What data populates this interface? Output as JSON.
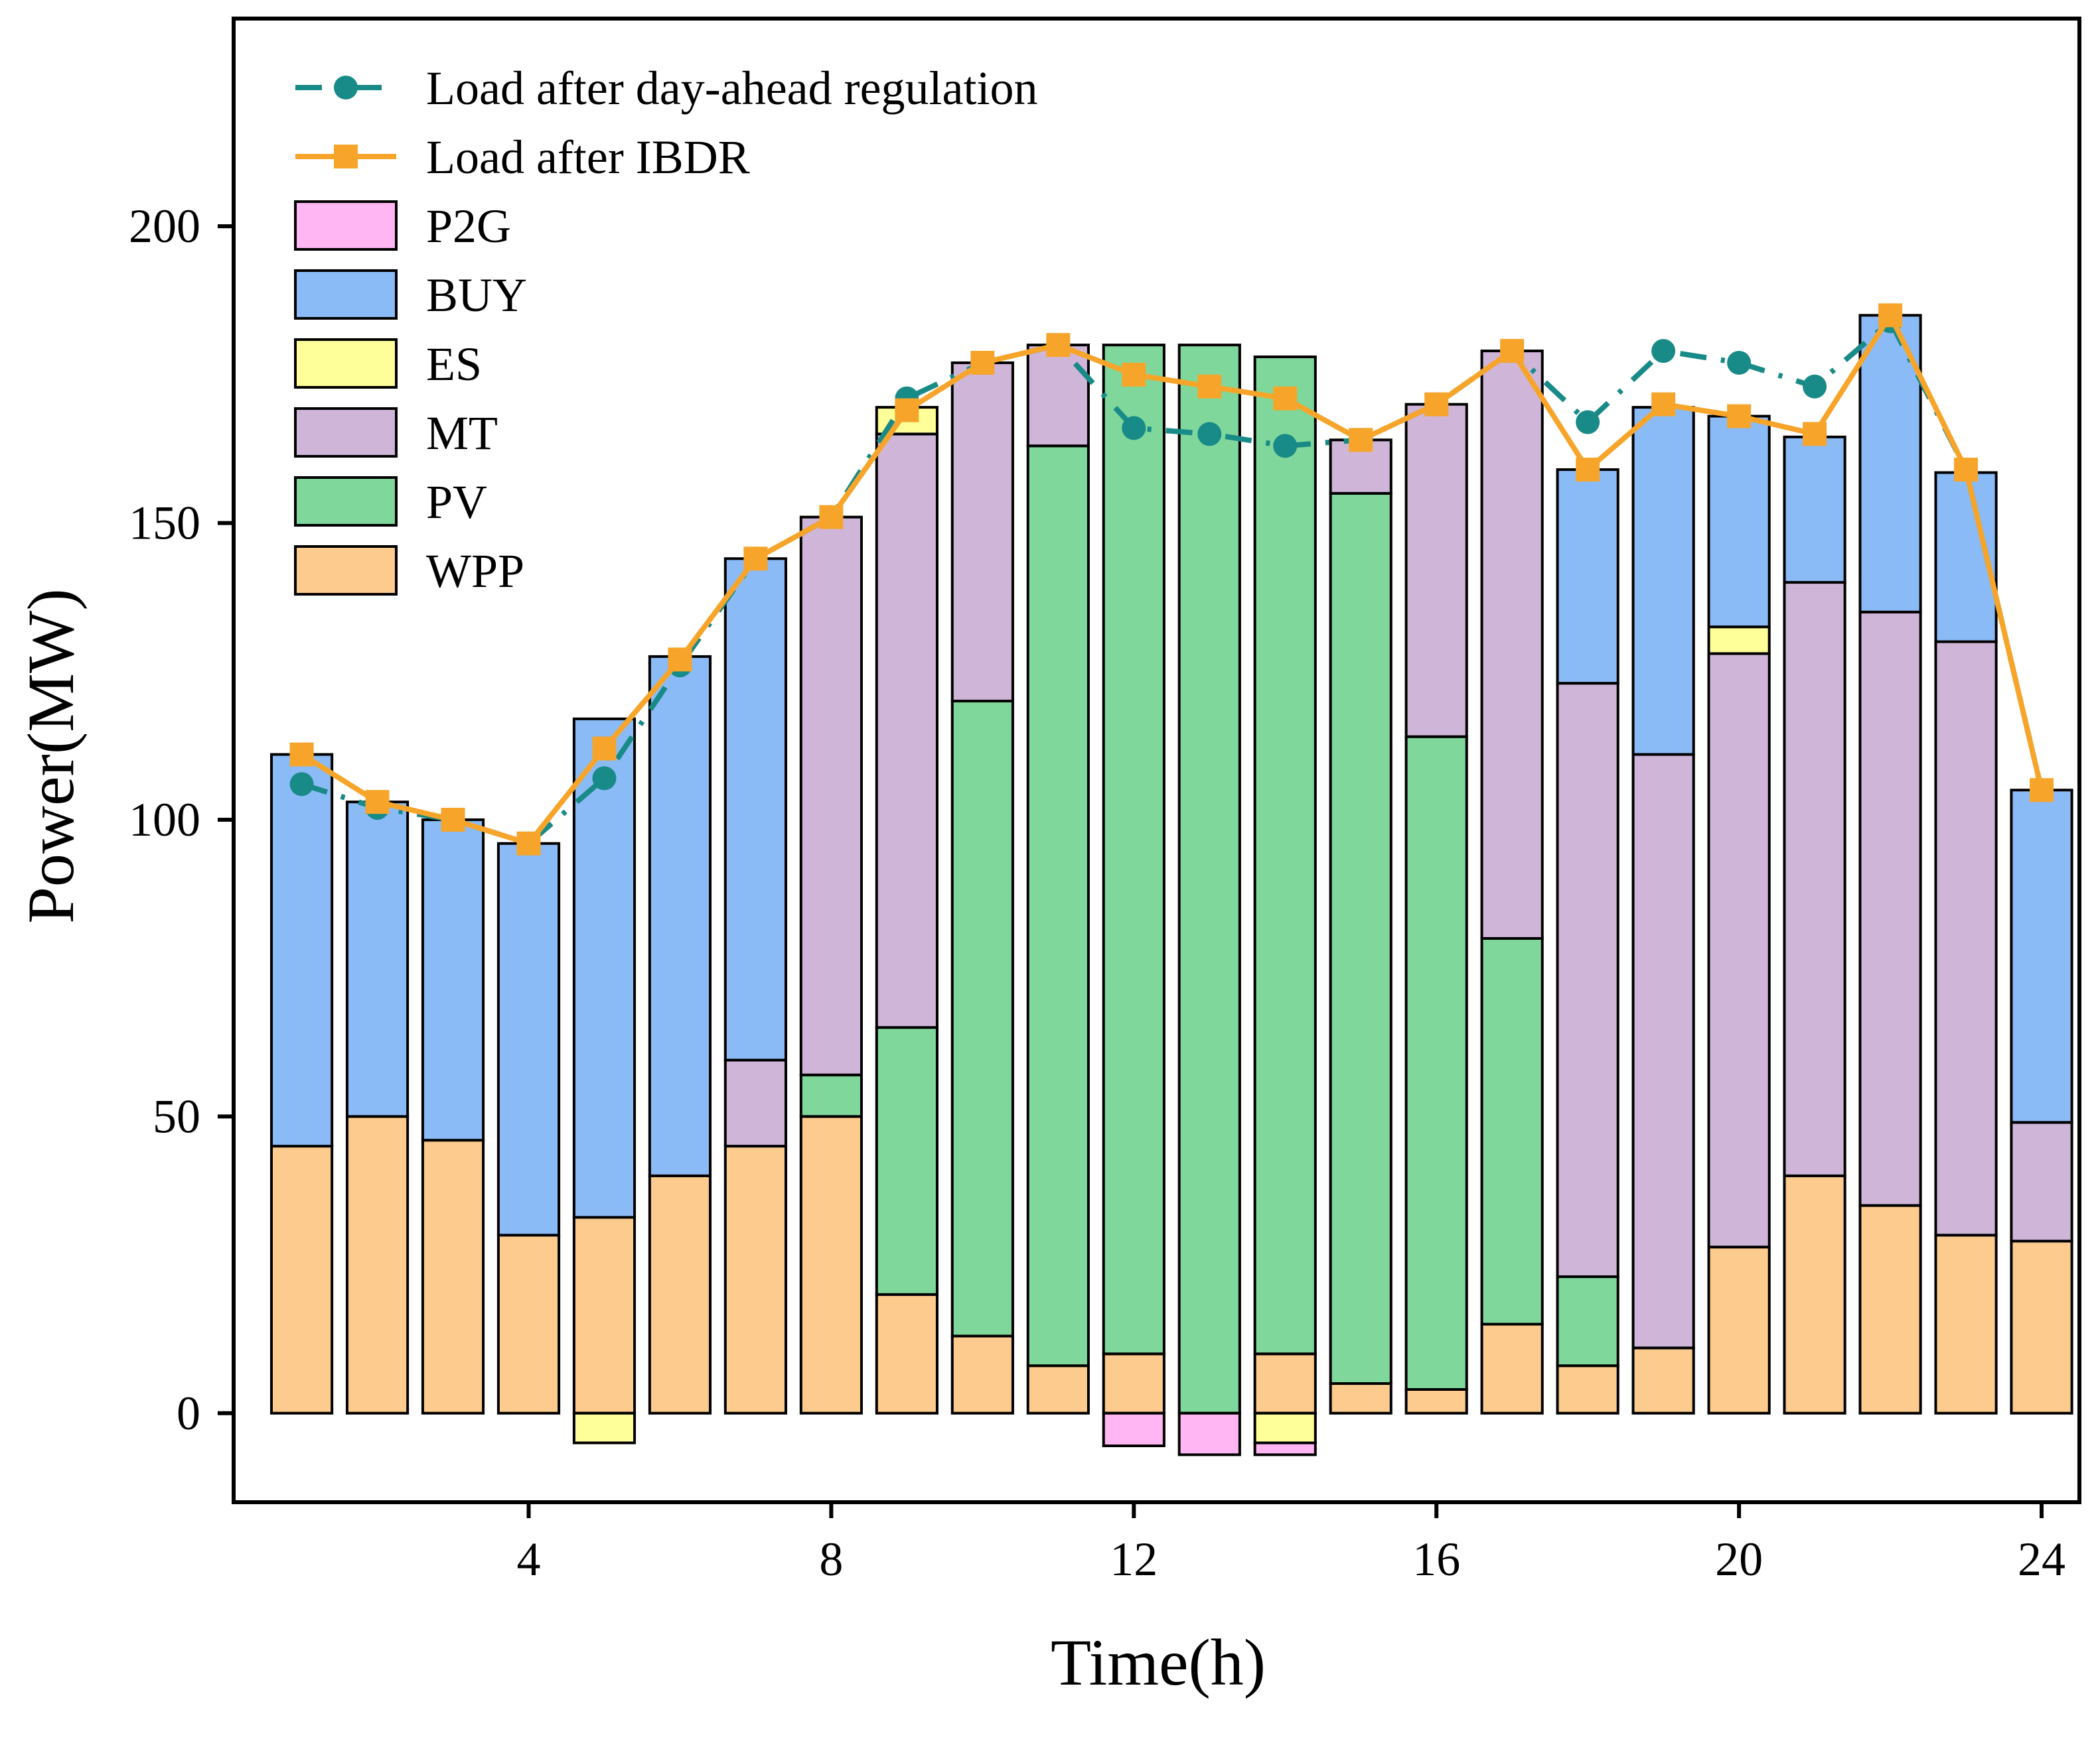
{
  "chart_data": {
    "type": "bar",
    "stacked": true,
    "title": "",
    "xlabel": "Time(h)",
    "ylabel": "Power(MW)",
    "xlim": [
      0.1,
      24.5
    ],
    "ylim": [
      -15,
      235
    ],
    "xticks": [
      4,
      8,
      12,
      16,
      20,
      24
    ],
    "yticks": [
      0,
      50,
      100,
      150,
      200
    ],
    "x": [
      1,
      2,
      3,
      4,
      5,
      6,
      7,
      8,
      9,
      10,
      11,
      12,
      13,
      14,
      15,
      16,
      17,
      18,
      19,
      20,
      21,
      22,
      23,
      24
    ],
    "series": [
      {
        "name": "WPP",
        "color": "#FDCB8D",
        "values": [
          45,
          50,
          46,
          30,
          33,
          40,
          45,
          50,
          20,
          13,
          8,
          10,
          0,
          10,
          5,
          4,
          15,
          8,
          11,
          28,
          40,
          35,
          30,
          29
        ]
      },
      {
        "name": "PV",
        "color": "#7FD79B",
        "values": [
          0,
          0,
          0,
          0,
          0,
          0,
          0,
          7,
          45,
          107,
          155,
          170,
          180,
          168,
          150,
          110,
          65,
          15,
          0,
          0,
          0,
          0,
          0,
          0
        ]
      },
      {
        "name": "MT",
        "color": "#CFB6D9",
        "values": [
          0,
          0,
          0,
          0,
          0,
          0,
          14.5,
          94,
          100,
          57,
          17,
          0,
          0,
          0,
          9,
          56,
          99,
          100,
          100,
          100,
          100,
          100,
          100,
          20
        ]
      },
      {
        "name": "ES",
        "color": "#FFFF99",
        "values": [
          0,
          0,
          0,
          0,
          -5,
          0,
          0,
          0,
          4.5,
          0,
          0,
          0,
          0,
          -5,
          0,
          0,
          0,
          0,
          0,
          4.5,
          0,
          0,
          0,
          0
        ]
      },
      {
        "name": "BUY",
        "color": "#8BBBF6",
        "values": [
          66,
          53,
          54,
          66,
          84,
          87.5,
          84.5,
          0,
          0,
          0,
          0,
          0,
          0,
          0,
          0,
          0,
          0,
          36,
          58.5,
          35.5,
          24.5,
          50,
          28.5,
          56
        ]
      },
      {
        "name": "P2G",
        "color": "#FFB6F3",
        "values": [
          0,
          0,
          0,
          0,
          0,
          0,
          0,
          0,
          0,
          0,
          0,
          -5.5,
          -7,
          -2,
          0,
          0,
          0,
          0,
          0,
          0,
          0,
          0,
          0,
          0
        ]
      }
    ],
    "lines": [
      {
        "name": "Load after day-ahead regulation",
        "color": "#188A87",
        "marker": "circle",
        "style": "dash-dot",
        "values": [
          106,
          102,
          100,
          96,
          107,
          126,
          144,
          151,
          171,
          177,
          180,
          166,
          165,
          163,
          164,
          170,
          179,
          167,
          179,
          177,
          173,
          184,
          159,
          105
        ]
      },
      {
        "name": "Load after IBDR",
        "color": "#F7A52A",
        "marker": "square",
        "style": "solid",
        "values": [
          111,
          103,
          100,
          96,
          112,
          127,
          144,
          151,
          169,
          177,
          180,
          175,
          173,
          171,
          164,
          170,
          179,
          159,
          170,
          168,
          165,
          185,
          159,
          105
        ]
      }
    ],
    "legend": {
      "position": "top-left",
      "entries": [
        {
          "name": "Load after day-ahead regulation",
          "kind": "line",
          "ref": 0
        },
        {
          "name": "Load after IBDR",
          "kind": "line",
          "ref": 1
        },
        {
          "name": "P2G",
          "kind": "bar",
          "ref": 5
        },
        {
          "name": "BUY",
          "kind": "bar",
          "ref": 4
        },
        {
          "name": "ES",
          "kind": "bar",
          "ref": 3
        },
        {
          "name": "MT",
          "kind": "bar",
          "ref": 2
        },
        {
          "name": "PV",
          "kind": "bar",
          "ref": 1
        },
        {
          "name": "WPP",
          "kind": "bar",
          "ref": 0
        }
      ]
    },
    "grid": false
  }
}
